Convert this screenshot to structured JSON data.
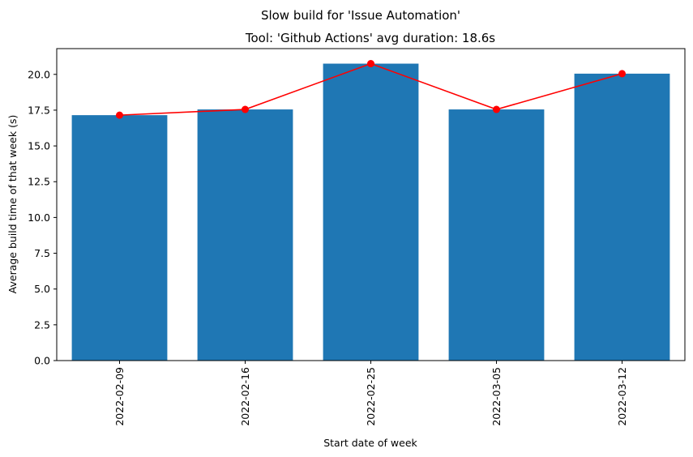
{
  "chart_data": {
    "type": "bar",
    "suptitle": "Slow build for 'Issue Automation'",
    "title": "Tool: 'Github Actions' avg duration: 18.6s",
    "xlabel": "Start date of week",
    "ylabel": "Average build time of that week (s)",
    "categories": [
      "2022-02-09",
      "2022-02-16",
      "2022-02-25",
      "2022-03-05",
      "2022-03-12"
    ],
    "values": [
      17.15,
      17.55,
      20.75,
      17.55,
      20.05
    ],
    "line_values": [
      17.15,
      17.55,
      20.75,
      17.55,
      20.05
    ],
    "ylim": [
      0,
      21.8
    ],
    "yticks": [
      "0.0",
      "2.5",
      "5.0",
      "7.5",
      "10.0",
      "12.5",
      "15.0",
      "17.5",
      "20.0"
    ],
    "bar_color": "#1f77b4",
    "line_color": "#ff0000",
    "grid": false,
    "legend": "none"
  }
}
